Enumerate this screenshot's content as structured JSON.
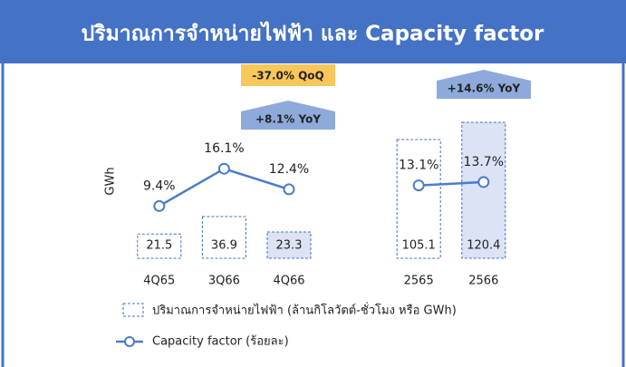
{
  "chart_data": {
    "type": "bar",
    "title": "ปริมาณการจำหน่ายไฟฟ้า และ Capacity factor",
    "y_label": "GWh",
    "categories": [
      "4Q65",
      "3Q66",
      "4Q66",
      null,
      "2565",
      "2566"
    ],
    "ylim": [
      0,
      130
    ],
    "y2lim": [
      0,
      26.4
    ],
    "series": [
      {
        "name": "ปริมาณการจำหน่ายไฟฟ้า (ล้านกิโลวัตต์-ชั่วโมง หรือ GWh)",
        "type": "bar",
        "color": "#4472c4",
        "fills": [
          "#ffffff",
          "#ffffff",
          "#dbe3f4",
          null,
          "#ffffff",
          "#dbe3f4"
        ],
        "values": [
          21.5,
          36.9,
          23.3,
          null,
          105.1,
          120.4
        ]
      },
      {
        "name": "Capacity factor (ร้อยละ)",
        "type": "line",
        "axis": "y2",
        "color": "#4a7cc9",
        "values": [
          9.4,
          16.1,
          12.4,
          null,
          13.1,
          13.7
        ],
        "value_labels": [
          "9.4%",
          "16.1%",
          "12.4%",
          null,
          "13.1%",
          "13.7%"
        ]
      }
    ],
    "annotations": [
      {
        "text": "-37.0% QoQ",
        "color": "#f7c75a"
      },
      {
        "text": "+8.1% YoY",
        "color": "#8eaadb"
      },
      {
        "text": "+14.6% YoY",
        "color": "#8eaadb"
      }
    ]
  }
}
